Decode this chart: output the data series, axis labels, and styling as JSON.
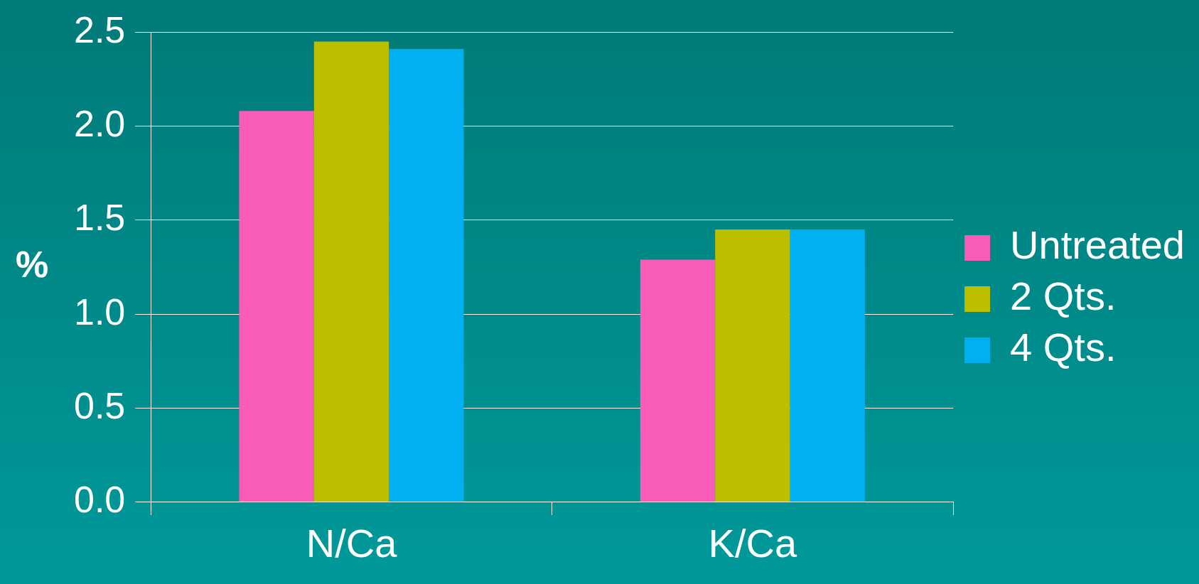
{
  "chart_data": {
    "type": "bar",
    "ylabel": "%",
    "categories": [
      "N/Ca",
      "K/Ca"
    ],
    "series": [
      {
        "name": "Untreated",
        "color": "#f95cb6",
        "values": [
          2.08,
          1.29
        ]
      },
      {
        "name": "2 Qts.",
        "color": "#bcbe00",
        "values": [
          2.45,
          1.45
        ]
      },
      {
        "name": "4 Qts.",
        "color": "#00b0f0",
        "values": [
          2.41,
          1.45
        ]
      }
    ],
    "ylim": [
      0,
      2.5
    ],
    "yticks": [
      {
        "value": 0,
        "label": "0.0"
      },
      0.5,
      {
        "value": 1,
        "label": "1.0"
      },
      1.5,
      {
        "value": 2,
        "label": "2.0"
      },
      2.5
    ],
    "grid": "y",
    "legend": "right"
  }
}
